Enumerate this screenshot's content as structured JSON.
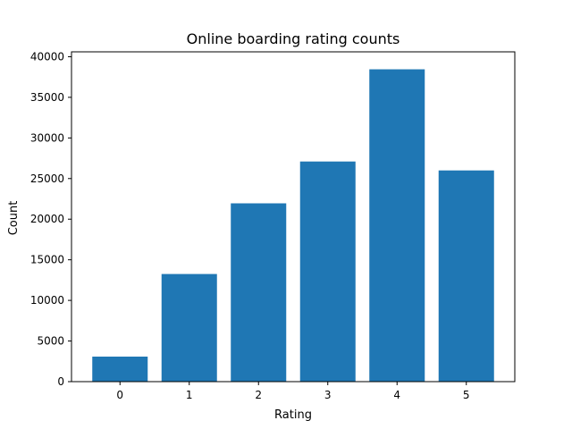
{
  "chart_data": {
    "type": "bar",
    "title": "Online boarding rating counts",
    "xlabel": "Rating",
    "ylabel": "Count",
    "categories": [
      "0",
      "1",
      "2",
      "3",
      "4",
      "5"
    ],
    "values": [
      3080,
      13250,
      21950,
      27100,
      38450,
      26000
    ],
    "ylim": [
      0,
      40600
    ],
    "yticks": [
      0,
      5000,
      10000,
      15000,
      20000,
      25000,
      30000,
      35000,
      40000
    ],
    "bar_color": "#1f77b4",
    "grid": false,
    "legend": false
  }
}
